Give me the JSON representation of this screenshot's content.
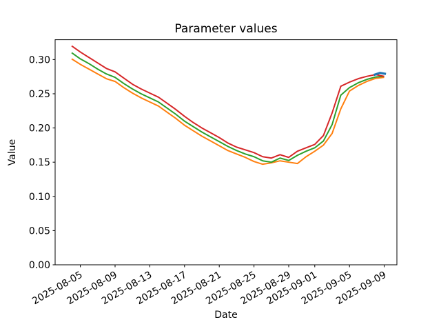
{
  "figure": {
    "background": "#ffffff",
    "frame_color": "#000000"
  },
  "chart_data": {
    "type": "line",
    "title": "Parameter values",
    "xlabel": "Date",
    "ylabel": "Value",
    "grid": false,
    "legend": "none",
    "ylim": [
      0,
      0.329
    ],
    "yticks": [
      0,
      0.05,
      0.1,
      0.15,
      0.2,
      0.25,
      0.3
    ],
    "ytick_labels": [
      "0.00",
      "0.05",
      "0.10",
      "0.15",
      "0.20",
      "0.25",
      "0.30"
    ],
    "x_dates": [
      "2025-08-04",
      "2025-08-05",
      "2025-08-06",
      "2025-08-07",
      "2025-08-08",
      "2025-08-09",
      "2025-08-10",
      "2025-08-11",
      "2025-08-12",
      "2025-08-13",
      "2025-08-14",
      "2025-08-15",
      "2025-08-16",
      "2025-08-17",
      "2025-08-18",
      "2025-08-19",
      "2025-08-20",
      "2025-08-21",
      "2025-08-22",
      "2025-08-23",
      "2025-08-24",
      "2025-08-25",
      "2025-08-26",
      "2025-08-27",
      "2025-08-28",
      "2025-08-29",
      "2025-08-30",
      "2025-08-31",
      "2025-09-01",
      "2025-09-02",
      "2025-09-03",
      "2025-09-04",
      "2025-09-05",
      "2025-09-06",
      "2025-09-07",
      "2025-09-08",
      "2025-09-09"
    ],
    "xtick_indices": [
      1,
      5,
      9,
      13,
      17,
      21,
      25,
      28,
      32,
      36
    ],
    "xtick_labels": [
      "2025-08-05",
      "2025-08-09",
      "2025-08-13",
      "2025-08-17",
      "2025-08-21",
      "2025-08-25",
      "2025-08-29",
      "2025-09-01",
      "2025-09-05",
      "2025-09-09"
    ],
    "series": [
      {
        "name": "orange-line",
        "color": "#ff7f0e",
        "linewidth": 2,
        "values": [
          0.301,
          0.293,
          0.286,
          0.279,
          0.272,
          0.268,
          0.259,
          0.251,
          0.244,
          0.238,
          0.232,
          0.223,
          0.214,
          0.204,
          0.196,
          0.188,
          0.181,
          0.174,
          0.167,
          0.162,
          0.157,
          0.151,
          0.147,
          0.149,
          0.152,
          0.15,
          0.148,
          0.158,
          0.166,
          0.175,
          0.192,
          0.228,
          0.254,
          0.262,
          0.268,
          0.2725,
          0.274
        ]
      },
      {
        "name": "green-line",
        "color": "#2ca02c",
        "linewidth": 2,
        "values": [
          0.31,
          0.301,
          0.294,
          0.286,
          0.279,
          0.274,
          0.265,
          0.257,
          0.25,
          0.244,
          0.238,
          0.229,
          0.22,
          0.21,
          0.202,
          0.194,
          0.187,
          0.18,
          0.173,
          0.167,
          0.162,
          0.158,
          0.152,
          0.15,
          0.156,
          0.1525,
          0.16,
          0.166,
          0.171,
          0.181,
          0.205,
          0.248,
          0.259,
          0.266,
          0.271,
          0.2745,
          0.2755
        ]
      },
      {
        "name": "red-line",
        "color": "#d62728",
        "linewidth": 2,
        "values": [
          0.32,
          0.311,
          0.303,
          0.295,
          0.287,
          0.282,
          0.273,
          0.264,
          0.257,
          0.251,
          0.245,
          0.236,
          0.227,
          0.217,
          0.208,
          0.2,
          0.193,
          0.186,
          0.178,
          0.172,
          0.168,
          0.164,
          0.158,
          0.156,
          0.161,
          0.157,
          0.166,
          0.171,
          0.176,
          0.189,
          0.222,
          0.261,
          0.267,
          0.272,
          0.2755,
          0.278,
          0.2755
        ]
      },
      {
        "name": "blue-short-line",
        "color": "#1f77b4",
        "linewidth": 3.2,
        "x_index": [
          34.8,
          35.5,
          36.2
        ],
        "values": [
          0.2775,
          0.2805,
          0.279
        ]
      }
    ]
  }
}
